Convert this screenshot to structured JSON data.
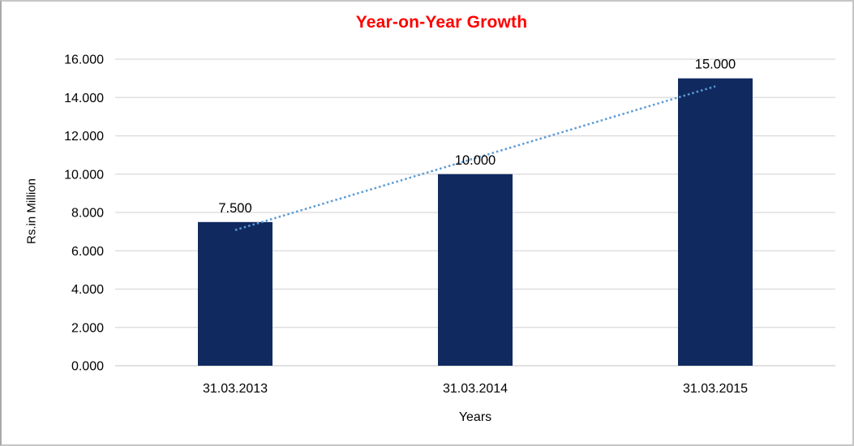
{
  "chart_data": {
    "type": "bar",
    "title": "Year-on-Year Growth",
    "xlabel": "Years",
    "ylabel": "Rs.in Million",
    "categories": [
      "31.03.2013",
      "31.03.2014",
      "31.03.2015"
    ],
    "values": [
      7.5,
      10.0,
      15.0
    ],
    "value_labels": [
      "7.500",
      "10.000",
      "15.000"
    ],
    "ytick_values": [
      0,
      2,
      4,
      6,
      8,
      10,
      12,
      14,
      16
    ],
    "ytick_labels": [
      "0.000",
      "2.000",
      "4.000",
      "6.000",
      "8.000",
      "10.000",
      "12.000",
      "14.000",
      "16.000"
    ],
    "ylim": [
      0,
      16
    ],
    "grid": true,
    "legend": "none",
    "trendline": {
      "type": "linear",
      "style": "dotted"
    },
    "colors": {
      "bar": "#102a60",
      "title": "#ff0000",
      "trendline": "#5b9bd5",
      "gridline": "#d9d9d9",
      "axis_line": "#cfcfcf",
      "text": "#000000",
      "background": "#ffffff"
    }
  }
}
